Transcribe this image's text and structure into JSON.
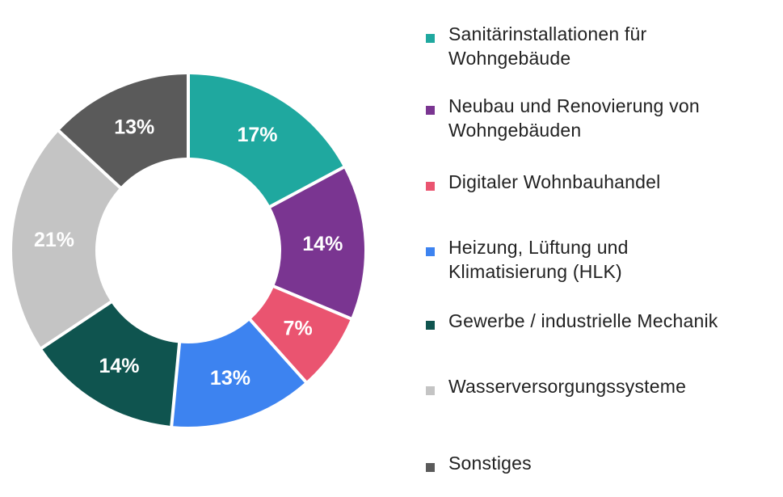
{
  "chart_data": {
    "type": "pie",
    "variant": "donut",
    "slices": [
      {
        "name": "Sanitärinstallationen für Wohngebäude",
        "value": 17,
        "label": "17%",
        "color": "#1fa89f"
      },
      {
        "name": "Neubau und Renovierung von Wohngebäuden",
        "value": 14,
        "label": "14%",
        "color": "#7a3591"
      },
      {
        "name": "Digitaler Wohnbauhandel",
        "value": 7,
        "label": "7%",
        "color": "#ea5470"
      },
      {
        "name": "Heizung, Lüftung und Klimatisierung (HLK)",
        "value": 13,
        "label": "13%",
        "color": "#3d83f0"
      },
      {
        "name": "Gewerbe / industrielle Mechanik",
        "value": 14,
        "label": "14%",
        "color": "#0f544f"
      },
      {
        "name": "Wasserversorgungssysteme",
        "value": 21,
        "label": "21%",
        "color": "#c4c4c4"
      },
      {
        "name": "Sonstiges",
        "value": 13,
        "label": "13%",
        "color": "#5a5a5a"
      }
    ],
    "legend_position": "right"
  },
  "legend": {
    "items": [
      {
        "label_line1": "Sanitärinstallationen für",
        "label_line2": "Wohngebäude"
      },
      {
        "label_line1": "Neubau und Renovierung von",
        "label_line2": "Wohngebäuden"
      },
      {
        "label_line1": "Digitaler Wohnbauhandel",
        "label_line2": ""
      },
      {
        "label_line1": "Heizung, Lüftung und",
        "label_line2": "Klimatisierung (HLK)"
      },
      {
        "label_line1": "Gewerbe / industrielle Mechanik",
        "label_line2": ""
      },
      {
        "label_line1": "Wasserversorgungssysteme",
        "label_line2": ""
      },
      {
        "label_line1": "Sonstiges",
        "label_line2": ""
      }
    ]
  }
}
